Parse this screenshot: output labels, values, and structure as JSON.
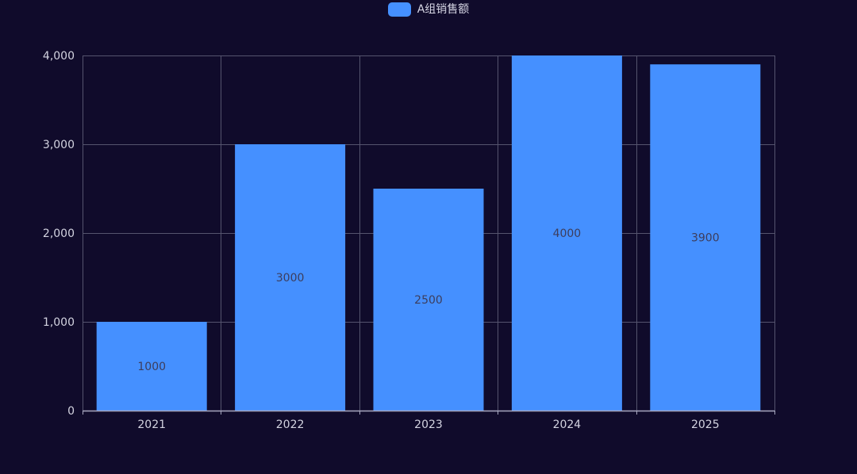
{
  "chart_data": {
    "type": "bar",
    "categories": [
      "2021",
      "2022",
      "2023",
      "2024",
      "2025"
    ],
    "series": [
      {
        "name": "A组销售额",
        "values": [
          1000,
          3000,
          2500,
          4000,
          3900
        ]
      }
    ],
    "data_labels": [
      "1000",
      "3000",
      "2500",
      "4000",
      "3900"
    ],
    "y_ticks": [
      0,
      1000,
      2000,
      3000,
      4000
    ],
    "y_tick_labels": [
      "0",
      "1,000",
      "2,000",
      "3,000",
      "4,000"
    ],
    "ylim": [
      0,
      4000
    ],
    "title": "",
    "xlabel": "",
    "ylabel": "",
    "grid": true,
    "legend_position": "top-center"
  },
  "colors": {
    "background": "#100b2b",
    "bar": "#4590ff",
    "grid": "#55546e",
    "axis": "#a8a8c0",
    "tick_text": "#d3d3e0",
    "data_label_text": "#3d3d5c"
  }
}
